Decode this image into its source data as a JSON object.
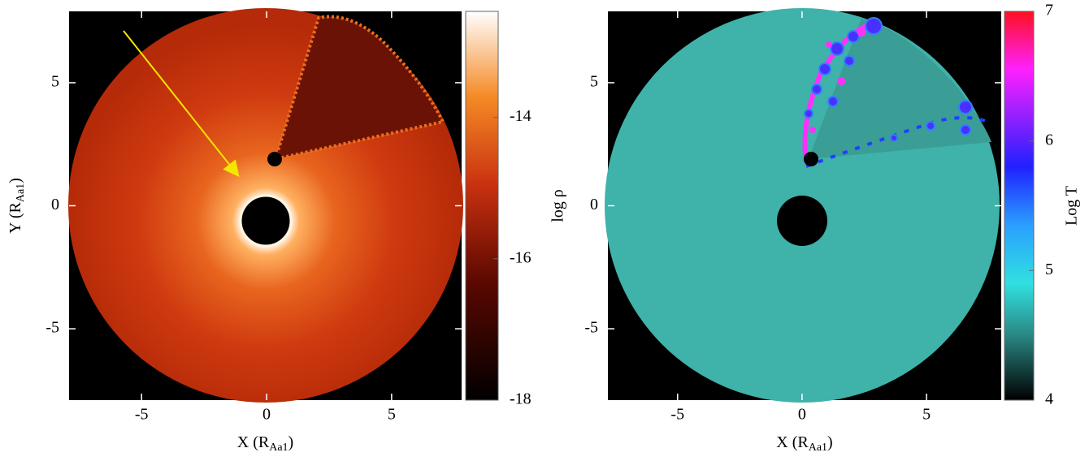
{
  "chart_data": [
    {
      "type": "map",
      "xlabel": {
        "main": "X (R",
        "subscript": "Aa1",
        "end": ")"
      },
      "ylabel": {
        "main": "Y (R",
        "subscript": "Aa1",
        "end": ")"
      },
      "xlim": [
        -7.9,
        7.8
      ],
      "ylim": [
        -7.9,
        7.9
      ],
      "xticks": [
        -5,
        0,
        5
      ],
      "yticks": [
        5,
        0,
        -5
      ],
      "colorbar": {
        "label": "log ρ",
        "lim": [
          -18,
          -12.5
        ],
        "ticks": [
          -14,
          -16,
          -18
        ]
      }
    },
    {
      "type": "map",
      "xlabel": {
        "main": "X (R",
        "subscript": "Aa1",
        "end": ")"
      },
      "xlim": [
        -7.8,
        8.0
      ],
      "ylim": [
        -7.9,
        7.9
      ],
      "xticks": [
        -5,
        0,
        5
      ],
      "yticks": [
        5,
        0,
        -5
      ],
      "colorbar": {
        "label": "Log T",
        "lim": [
          4,
          7
        ],
        "ticks": [
          7,
          6,
          5,
          4
        ]
      }
    }
  ]
}
